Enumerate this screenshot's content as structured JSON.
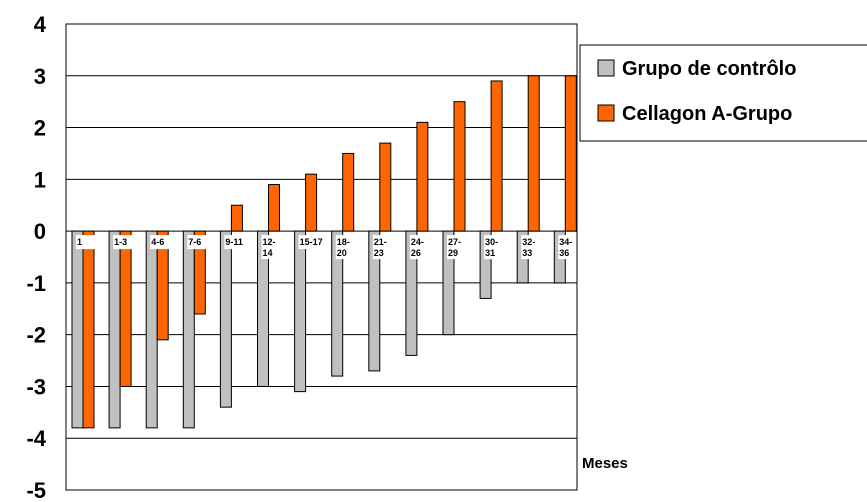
{
  "chart_data": {
    "type": "bar",
    "categories": [
      [
        "1"
      ],
      [
        "1-3"
      ],
      [
        "4-6"
      ],
      [
        "7-6"
      ],
      [
        "9-11"
      ],
      [
        "12-",
        "14"
      ],
      [
        "15-17"
      ],
      [
        "18-",
        "20"
      ],
      [
        "21-",
        "23"
      ],
      [
        "24-",
        "26"
      ],
      [
        "27-",
        "29"
      ],
      [
        "30-",
        "31"
      ],
      [
        "32-",
        "33"
      ],
      [
        "34-",
        "36"
      ]
    ],
    "series": [
      {
        "name": "Grupo de contrôlo",
        "color": "#c0c0c0",
        "values": [
          -3.8,
          -3.8,
          -3.8,
          -3.8,
          -3.4,
          -3.0,
          -3.1,
          -2.8,
          -2.7,
          -2.4,
          -2.0,
          -1.3,
          -1.0,
          -1.0
        ]
      },
      {
        "name": "Cellagon A-Grupo",
        "color": "#ff6600",
        "values": [
          -3.8,
          -3.0,
          -2.1,
          -1.6,
          0.5,
          0.9,
          1.1,
          1.5,
          1.7,
          2.1,
          2.5,
          2.9,
          3.0,
          3.0
        ]
      }
    ],
    "ylim": [
      -5,
      4
    ],
    "yticks": [
      "4",
      "3",
      "2",
      "1",
      "0",
      "-1",
      "-2",
      "-3",
      "-4",
      "-5"
    ],
    "xlabel": "Meses",
    "grid": true,
    "legend": "right"
  }
}
